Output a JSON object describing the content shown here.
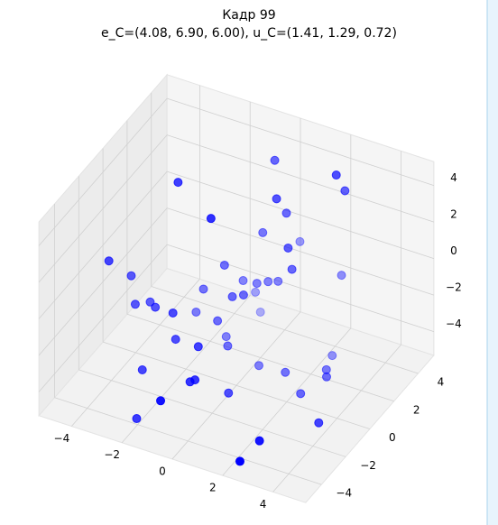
{
  "chart_data": {
    "type": "scatter3d",
    "title": "Кадр 99",
    "subtitle": "e_C=(4.08, 6.90, 6.00), u_C=(1.41, 1.29, 0.72)",
    "x": [
      -0.3,
      2.0,
      2.2,
      -2.7,
      0.3,
      0.5,
      -1.2,
      -0.2,
      0.7,
      1.0,
      -4.2,
      -1.0,
      1.2,
      2.4,
      -3.6,
      -0.5,
      0.3,
      0.6,
      0.0,
      -1.5,
      -0.3,
      -0.4,
      -0.1,
      -2.8,
      -3.2,
      -2.5,
      -1.6,
      -1.8,
      -0.1,
      -0.7,
      -1.5,
      -0.5,
      -0.2,
      -0.6,
      2.8,
      0.8,
      -2.2,
      3.0,
      1.8,
      3.2,
      -0.3,
      -0.4,
      2.6,
      0.6,
      -0.8,
      -1.8,
      3.8,
      2.6,
      2.4
    ],
    "y": [
      3.8,
      4.1,
      4.4,
      0.8,
      2.7,
      3.1,
      0.4,
      2.6,
      3.8,
      2.2,
      -1.8,
      1.1,
      2.1,
      3.7,
      -1.2,
      1.6,
      2.0,
      2.2,
      1.7,
      0.4,
      2.2,
      0.5,
      0.8,
      -1.3,
      -1.7,
      -1.5,
      0.0,
      -1.5,
      2.2,
      -0.1,
      -1.9,
      0.2,
      -0.3,
      -1.9,
      2.1,
      0.2,
      -3.2,
      1.2,
      0.3,
      0.8,
      -2.8,
      -3.0,
      -0.1,
      -1.9,
      -4.6,
      -4.5,
      -1.1,
      -3.5,
      -4.7
    ],
    "z": [
      4,
      4,
      3,
      4,
      3,
      2,
      3,
      1,
      0,
      1,
      1,
      0,
      0,
      -1,
      0,
      -1,
      -1,
      -1,
      -1,
      -1,
      -2,
      -1,
      -1,
      -1,
      -1,
      -1,
      -2,
      -1,
      -3,
      -2,
      -2,
      -3,
      -3,
      -2,
      -4,
      -4,
      -3,
      -4,
      -4,
      -4,
      -3,
      -3,
      -4.5,
      -4,
      -3,
      -4.5,
      -4.8,
      -4.5,
      -4.8
    ],
    "color": "#0000ff",
    "xlim": [
      -5.3,
      5.3
    ],
    "ylim": [
      -5.3,
      5.3
    ],
    "zlim": [
      -5.3,
      5.3
    ],
    "xticks": [
      {
        "value": -4,
        "label": "−4"
      },
      {
        "value": -2,
        "label": "−2"
      },
      0,
      2,
      4
    ],
    "yticks": [
      {
        "value": -4,
        "label": "−4"
      },
      {
        "value": -2,
        "label": "−2"
      },
      0,
      2,
      4
    ],
    "zticks": [
      {
        "value": -4,
        "label": "−4"
      },
      {
        "value": -2,
        "label": "−2"
      },
      0,
      2,
      4
    ],
    "grid": true
  }
}
